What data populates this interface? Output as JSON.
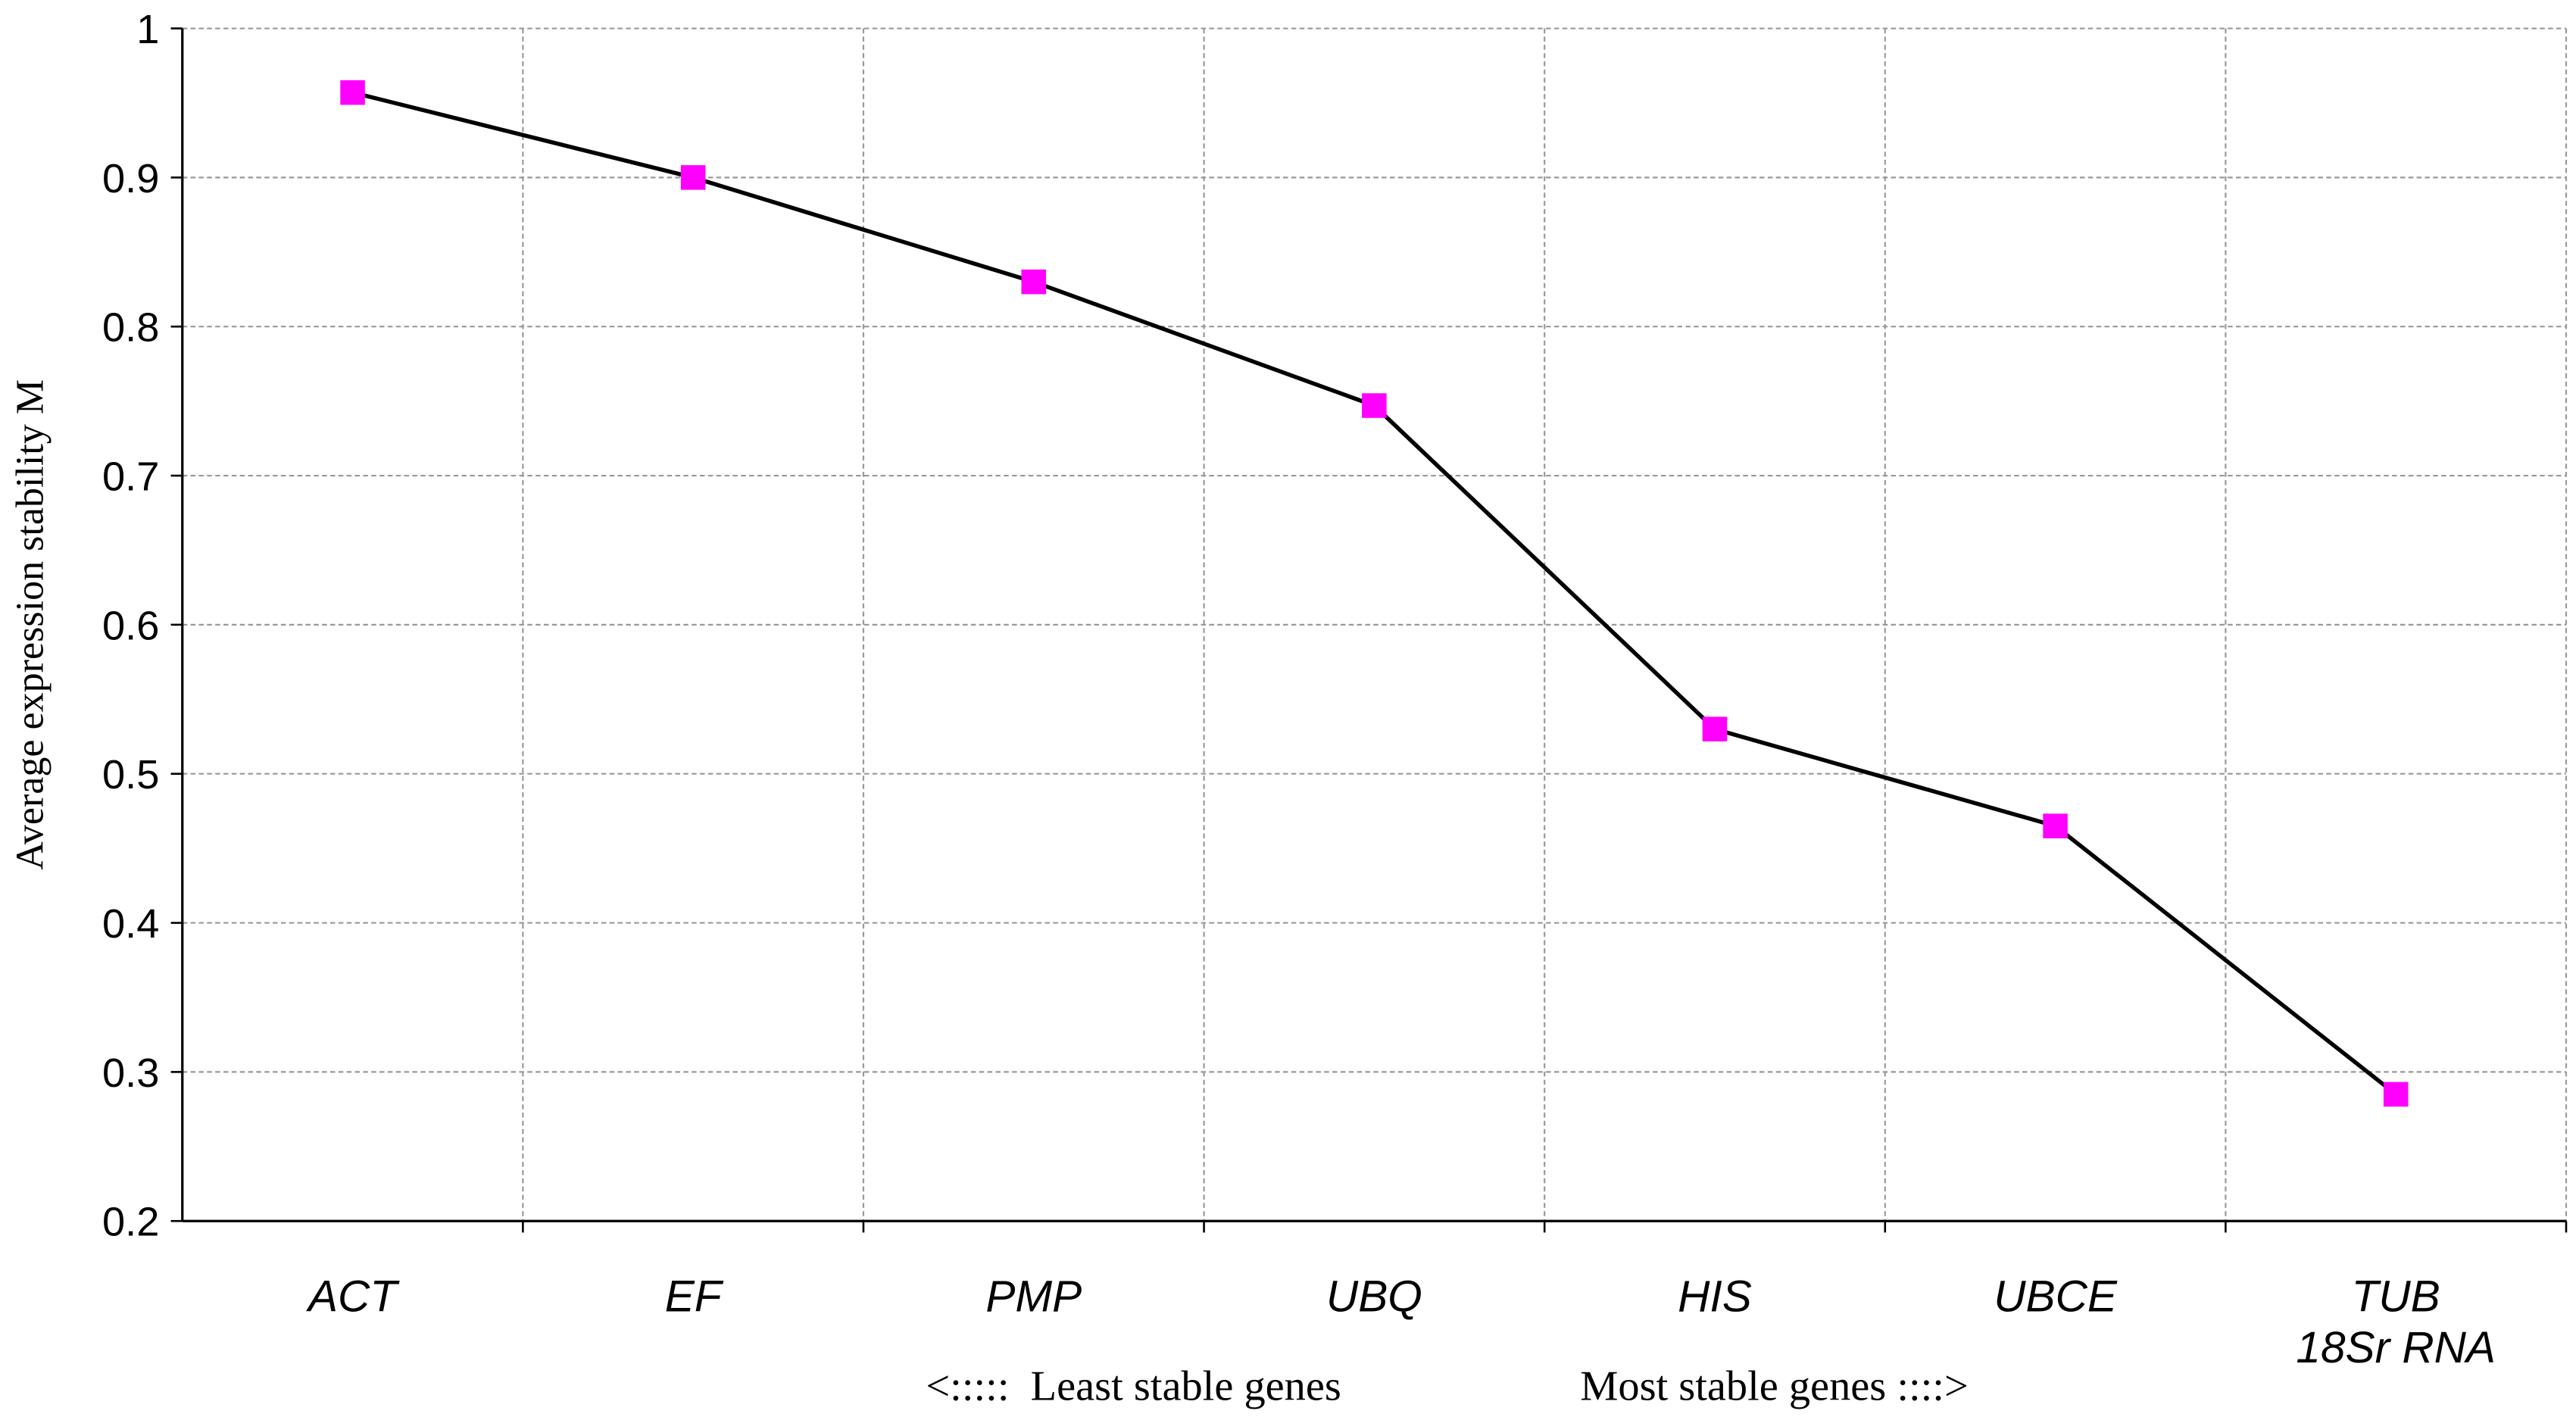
{
  "chart_data": {
    "type": "line",
    "y_label": "Average expression stability M",
    "annotations": [
      "<:::::  Least stable genes",
      "Most stable genes ::::>"
    ],
    "categories": [
      "ACT",
      "EF",
      "PMP",
      "UBQ",
      "HIS",
      "UBCE",
      "TUB\n18Sr RNA"
    ],
    "series": [
      {
        "color": "#ff00ff",
        "values": [
          0.957,
          0.9,
          0.83,
          0.747,
          0.53,
          0.465,
          0.285
        ]
      }
    ],
    "ylim": [
      0.2,
      1
    ],
    "yticks": [
      0.2,
      0.3,
      0.4,
      0.5,
      0.6,
      0.7,
      0.8,
      0.9,
      1
    ],
    "grid": true
  }
}
